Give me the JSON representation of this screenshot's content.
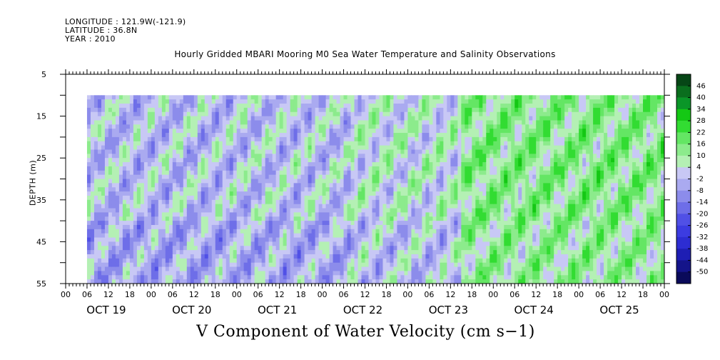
{
  "header": {
    "longitude": "LONGITUDE : 121.9W(-121.9)",
    "latitude": "LATITUDE : 36.8N",
    "year": "YEAR : 2010"
  },
  "chart_data": {
    "type": "heatmap",
    "title": "Hourly Gridded MBARI Mooring M0 Sea Water Temperature and Salinity Observations",
    "xlabel": "V Component of Water Velocity (cm s−1)",
    "ylabel": "DEPTH (m)",
    "y_range": [
      5,
      55
    ],
    "y_ticks": [
      "5",
      "15",
      "25",
      "35",
      "45",
      "55"
    ],
    "y_inverted": true,
    "x_range": [
      "2010-10-19T00:00",
      "2010-10-26T00:00"
    ],
    "x_hour_labels": [
      "00",
      "06",
      "12",
      "18"
    ],
    "x_day_labels": [
      "OCT 19",
      "OCT 20",
      "OCT 21",
      "OCT 22",
      "OCT 23",
      "OCT 24",
      "OCT 25"
    ],
    "data_start": "2010-10-19T06:00",
    "data_end": "2010-10-25T23:00",
    "depth_top": 10,
    "depth_bottom": 55,
    "colorbar": {
      "levels": [
        -50,
        -44,
        -38,
        -32,
        -26,
        -20,
        -14,
        -8,
        -2,
        4,
        10,
        16,
        22,
        28,
        34,
        40,
        46
      ],
      "labels": [
        "46",
        "40",
        "34",
        "28",
        "22",
        "16",
        "10",
        "4",
        "-2",
        "-8",
        "-14",
        "-20",
        "-26",
        "-32",
        "-38",
        "-44",
        "-50"
      ],
      "colors": [
        "#0a0a5a",
        "#14148a",
        "#1e1eb4",
        "#2d2dd2",
        "#3c3ce1",
        "#5050e6",
        "#6e6ee8",
        "#8c8ceb",
        "#aaaaf0",
        "#c8c8f5",
        "#b4f0b4",
        "#8ceb8c",
        "#64e664",
        "#32dc32",
        "#14c814",
        "#0a9628",
        "#0a6e1e",
        "#064616"
      ]
    },
    "dominant_values": {
      "oct19": "mixed -8 to 10",
      "oct20": "mostly -8 to 4",
      "oct21": "mixed -14 to 10",
      "oct22": "mixed -8 to 16",
      "oct23": "mostly 10 to 22",
      "oct24": "mostly 10 to 28",
      "oct25": "mostly 4 to 22"
    }
  }
}
